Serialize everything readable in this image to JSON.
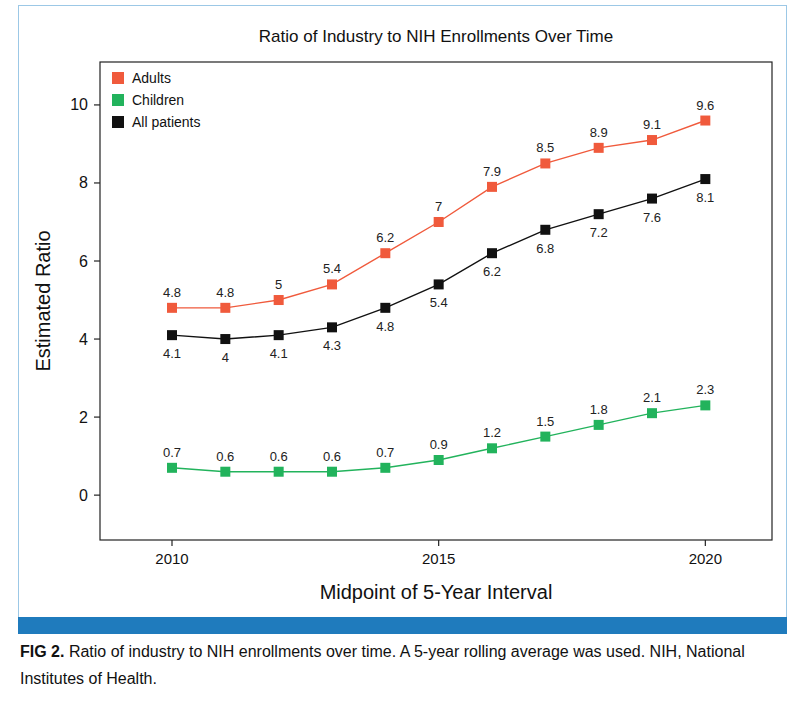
{
  "chart_data": {
    "type": "line",
    "title": "Ratio of Industry to NIH Enrollments Over Time",
    "x_label": "Midpoint of 5-Year Interval",
    "y_label": "Estimated Ratio",
    "x": [
      2010,
      2011,
      2012,
      2013,
      2014,
      2015,
      2016,
      2017,
      2018,
      2019,
      2020
    ],
    "series": [
      {
        "name": "Adults",
        "color": "#f05a3c",
        "marker": "square",
        "line_style": "solid",
        "values": [
          4.8,
          4.8,
          5,
          5.4,
          6.2,
          7,
          7.9,
          8.5,
          8.9,
          9.1,
          9.6
        ]
      },
      {
        "name": "Children",
        "color": "#22b35c",
        "marker": "square",
        "line_style": "solid",
        "values": [
          0.7,
          0.6,
          0.6,
          0.6,
          0.7,
          0.9,
          1.2,
          1.5,
          1.8,
          2.1,
          2.3
        ]
      },
      {
        "name": "All patients",
        "color": "#111111",
        "marker": "square",
        "line_style": "solid",
        "values": [
          4.1,
          4,
          4.1,
          4.3,
          4.8,
          5.4,
          6.2,
          6.8,
          7.2,
          7.6,
          8.1
        ]
      }
    ],
    "xlim": [
      2008.65,
      2021.25
    ],
    "xticks": [
      2010,
      2015,
      2020
    ],
    "ylim": [
      -1.15,
      11.1
    ],
    "yticks": [
      0,
      2,
      4,
      6,
      8,
      10
    ],
    "grid": false,
    "legend": "upper-left",
    "data_labels": true
  },
  "caption": {
    "label": "FIG 2.",
    "text": "Ratio of industry to NIH enrollments over time. A 5-year rolling average was used. NIH, National Institutes of Health."
  }
}
